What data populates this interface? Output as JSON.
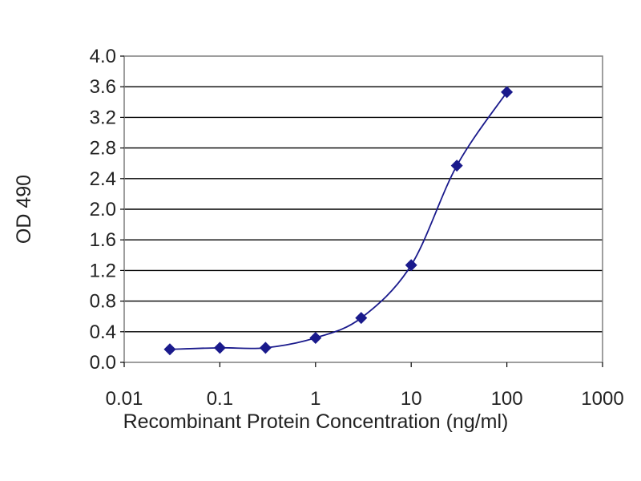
{
  "chart_data": {
    "type": "line",
    "title": "",
    "xlabel": "Recombinant Protein Concentration (ng/ml)",
    "ylabel": "OD 490",
    "x_scale": "log",
    "xlim": [
      0.01,
      1000
    ],
    "ylim": [
      0.0,
      4.0
    ],
    "x_tick_labels": [
      "0.01",
      "0.1",
      "1",
      "10",
      "100",
      "1000"
    ],
    "x_ticks": [
      0.01,
      0.1,
      1,
      10,
      100,
      1000
    ],
    "y_tick_labels": [
      "0.0",
      "0.4",
      "0.8",
      "1.2",
      "1.6",
      "2.0",
      "2.4",
      "2.8",
      "3.2",
      "3.6",
      "4.0"
    ],
    "y_ticks": [
      0.0,
      0.4,
      0.8,
      1.2,
      1.6,
      2.0,
      2.4,
      2.8,
      3.2,
      3.6,
      4.0
    ],
    "grid": "horizontal",
    "legend": "none",
    "series": [
      {
        "x": [
          0.03,
          0.1,
          0.3,
          1,
          3,
          10,
          30,
          100
        ],
        "y": [
          0.17,
          0.19,
          0.19,
          0.32,
          0.58,
          1.27,
          2.57,
          3.53
        ],
        "color": "#1a1a8c",
        "marker": "diamond"
      }
    ],
    "colors": {
      "plot_background": "#ffffff",
      "gridline": "#000000",
      "series": "#1a1a8c",
      "frame": "#7f7f7f"
    }
  }
}
